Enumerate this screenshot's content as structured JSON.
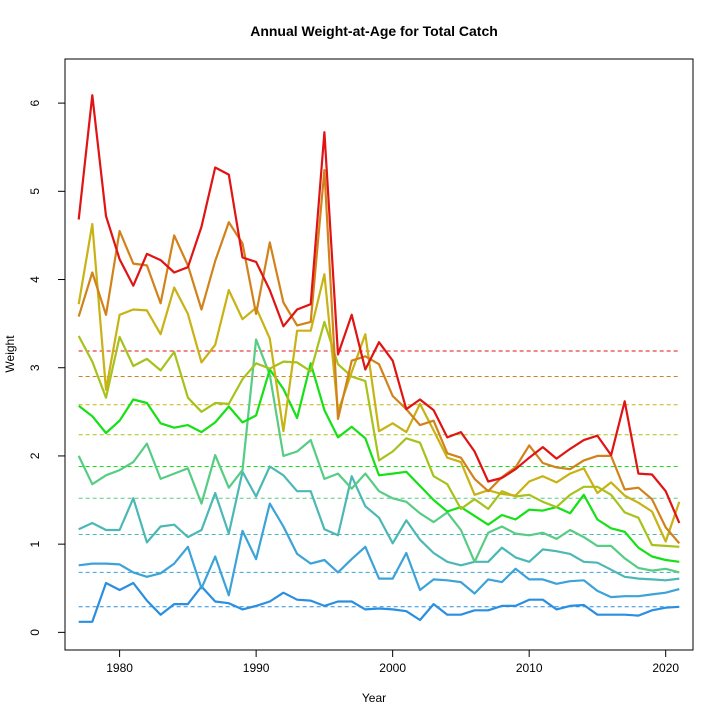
{
  "chart_data": {
    "type": "line",
    "title": "Annual Weight-at-Age for Total Catch",
    "xlabel": "Year",
    "ylabel": "Weight",
    "xlim": [
      1976,
      2022
    ],
    "ylim": [
      -0.2,
      6.5
    ],
    "x_ticks": [
      1980,
      1990,
      2000,
      2010,
      2020
    ],
    "y_ticks": [
      0,
      1,
      2,
      3,
      4,
      5,
      6
    ],
    "x_tick_labels": [
      "1980",
      "1990",
      "2000",
      "2010",
      "2020"
    ],
    "y_tick_labels": [
      "0",
      "1",
      "2",
      "3",
      "4",
      "5",
      "6"
    ],
    "grid": false,
    "legend": "none",
    "x": [
      1977,
      1978,
      1979,
      1980,
      1981,
      1982,
      1983,
      1984,
      1985,
      1986,
      1987,
      1988,
      1989,
      1990,
      1991,
      1992,
      1993,
      1994,
      1995,
      1996,
      1997,
      1998,
      1999,
      2000,
      2001,
      2002,
      2003,
      2004,
      2005,
      2006,
      2007,
      2008,
      2009,
      2010,
      2011,
      2012,
      2013,
      2014,
      2015,
      2016,
      2017,
      2018,
      2019,
      2020,
      2021
    ],
    "series": [
      {
        "color": "#2a8fe0",
        "mean": 0.29,
        "values": [
          0.12,
          0.12,
          0.56,
          0.48,
          0.56,
          0.36,
          0.2,
          0.32,
          0.32,
          0.52,
          0.35,
          0.33,
          0.26,
          0.3,
          0.35,
          0.45,
          0.37,
          0.36,
          0.3,
          0.35,
          0.35,
          0.26,
          0.27,
          0.26,
          0.24,
          0.14,
          0.32,
          0.2,
          0.2,
          0.25,
          0.25,
          0.3,
          0.3,
          0.37,
          0.37,
          0.26,
          0.3,
          0.31,
          0.2,
          0.2,
          0.2,
          0.19,
          0.25,
          0.28,
          0.29
        ]
      },
      {
        "color": "#3ca3d8",
        "mean": 0.68,
        "values": [
          0.76,
          0.78,
          0.78,
          0.77,
          0.68,
          0.63,
          0.67,
          0.78,
          0.97,
          0.5,
          0.86,
          0.42,
          1.15,
          0.83,
          1.46,
          1.2,
          0.89,
          0.78,
          0.82,
          0.68,
          0.83,
          0.97,
          0.61,
          0.61,
          0.9,
          0.48,
          0.6,
          0.59,
          0.57,
          0.44,
          0.6,
          0.57,
          0.72,
          0.6,
          0.6,
          0.55,
          0.58,
          0.59,
          0.47,
          0.4,
          0.41,
          0.41,
          0.43,
          0.45,
          0.49
        ]
      },
      {
        "color": "#4cb8b6",
        "mean": 1.11,
        "values": [
          1.17,
          1.24,
          1.16,
          1.16,
          1.52,
          1.02,
          1.2,
          1.22,
          1.08,
          1.16,
          1.58,
          1.12,
          1.82,
          1.54,
          1.88,
          1.78,
          1.6,
          1.6,
          1.17,
          1.1,
          1.77,
          1.43,
          1.3,
          1.01,
          1.27,
          1.05,
          0.9,
          0.8,
          0.76,
          0.8,
          0.8,
          0.96,
          0.85,
          0.8,
          0.94,
          0.92,
          0.89,
          0.8,
          0.79,
          0.71,
          0.63,
          0.61,
          0.6,
          0.59,
          0.61
        ]
      },
      {
        "color": "#57cc84",
        "mean": 1.52,
        "values": [
          2.0,
          1.68,
          1.78,
          1.84,
          1.93,
          2.14,
          1.74,
          1.8,
          1.86,
          1.46,
          2.01,
          1.64,
          1.84,
          3.32,
          2.92,
          2.0,
          2.05,
          2.18,
          1.74,
          1.8,
          1.63,
          1.8,
          1.6,
          1.52,
          1.48,
          1.35,
          1.25,
          1.36,
          1.16,
          0.8,
          1.13,
          1.2,
          1.12,
          1.1,
          1.13,
          1.06,
          1.16,
          1.08,
          0.98,
          0.98,
          0.84,
          0.73,
          0.7,
          0.72,
          0.68
        ]
      },
      {
        "color": "#16e016",
        "mean": 1.88,
        "values": [
          2.57,
          2.45,
          2.26,
          2.4,
          2.64,
          2.6,
          2.37,
          2.32,
          2.35,
          2.27,
          2.38,
          2.56,
          2.38,
          2.46,
          2.98,
          2.76,
          2.43,
          3.05,
          2.52,
          2.21,
          2.33,
          2.2,
          1.78,
          1.8,
          1.82,
          1.66,
          1.5,
          1.37,
          1.42,
          1.32,
          1.22,
          1.33,
          1.28,
          1.39,
          1.38,
          1.42,
          1.35,
          1.56,
          1.28,
          1.18,
          1.14,
          0.96,
          0.86,
          0.82,
          0.8
        ]
      },
      {
        "color": "#a6c21c",
        "mean": 2.24,
        "values": [
          3.36,
          3.07,
          2.66,
          3.35,
          3.02,
          3.1,
          2.97,
          3.18,
          2.66,
          2.5,
          2.6,
          2.59,
          2.87,
          3.05,
          2.99,
          3.07,
          3.06,
          2.96,
          3.52,
          3.04,
          2.9,
          2.85,
          1.95,
          2.05,
          2.2,
          2.15,
          1.77,
          1.68,
          1.4,
          1.51,
          1.4,
          1.6,
          1.54,
          1.56,
          1.48,
          1.42,
          1.56,
          1.65,
          1.65,
          1.56,
          1.36,
          1.3,
          0.99,
          0.98,
          0.97
        ]
      },
      {
        "color": "#c8b214",
        "mean": 2.58,
        "values": [
          3.72,
          4.63,
          2.75,
          3.6,
          3.66,
          3.65,
          3.38,
          3.91,
          3.61,
          3.06,
          3.26,
          3.88,
          3.55,
          3.68,
          3.33,
          2.28,
          3.42,
          3.42,
          4.06,
          2.5,
          2.95,
          3.38,
          2.28,
          2.37,
          2.27,
          2.59,
          2.29,
          1.98,
          1.93,
          1.56,
          1.61,
          1.57,
          1.55,
          1.71,
          1.77,
          1.7,
          1.8,
          1.86,
          1.58,
          1.7,
          1.55,
          1.47,
          1.37,
          1.03,
          1.48
        ]
      },
      {
        "color": "#d2821a",
        "mean": 2.9,
        "values": [
          3.58,
          4.08,
          3.6,
          4.55,
          4.18,
          4.16,
          3.73,
          4.5,
          4.16,
          3.66,
          4.21,
          4.65,
          4.41,
          3.61,
          4.42,
          3.74,
          3.48,
          3.52,
          5.24,
          2.42,
          3.08,
          3.13,
          3.04,
          2.68,
          2.53,
          2.35,
          2.4,
          2.03,
          1.98,
          1.74,
          1.6,
          1.76,
          1.87,
          2.12,
          1.92,
          1.87,
          1.85,
          1.95,
          2.0,
          2.0,
          1.62,
          1.64,
          1.51,
          1.19,
          1.01
        ]
      },
      {
        "color": "#e01414",
        "mean": 3.19,
        "values": [
          4.68,
          6.09,
          4.72,
          4.23,
          3.93,
          4.29,
          4.22,
          4.08,
          4.14,
          4.6,
          5.27,
          5.19,
          4.25,
          4.2,
          3.88,
          3.47,
          3.66,
          3.72,
          5.67,
          3.15,
          3.6,
          2.98,
          3.29,
          3.08,
          2.53,
          2.64,
          2.52,
          2.21,
          2.27,
          2.05,
          1.71,
          1.75,
          1.85,
          1.98,
          2.1,
          1.97,
          2.08,
          2.18,
          2.23,
          2.01,
          2.62,
          1.8,
          1.79,
          1.6,
          1.24
        ]
      }
    ]
  }
}
